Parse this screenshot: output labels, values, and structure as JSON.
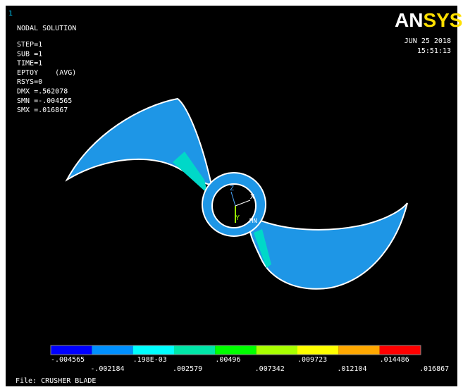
{
  "window_number": "1",
  "header": {
    "title": "NODAL SOLUTION",
    "lines": [
      "STEP=1",
      "SUB =1",
      "TIME=1",
      "EPTOY    (AVG)",
      "RSYS=0",
      "DMX =.562078",
      "SMN =-.004565",
      "SMX =.016867"
    ]
  },
  "logo": {
    "left": "AN",
    "right": "SYS"
  },
  "date": "JUN 25 2018",
  "time": "15:51:13",
  "model": {
    "triad": [
      "Z",
      "Y",
      "X"
    ],
    "min_marker": "MN"
  },
  "legend": {
    "colors": [
      "#0000ff",
      "#0090ff",
      "#00ffff",
      "#00e6a8",
      "#00ff00",
      "#a8ff00",
      "#ffff00",
      "#ffa800",
      "#ff0000"
    ],
    "labels": [
      "-.004565",
      "-.002184",
      ".198E-03",
      ".002579",
      ".00496",
      ".007342",
      ".009723",
      ".012104",
      ".014486",
      ".016867"
    ]
  },
  "footer": "File: CRUSHER BLADE"
}
